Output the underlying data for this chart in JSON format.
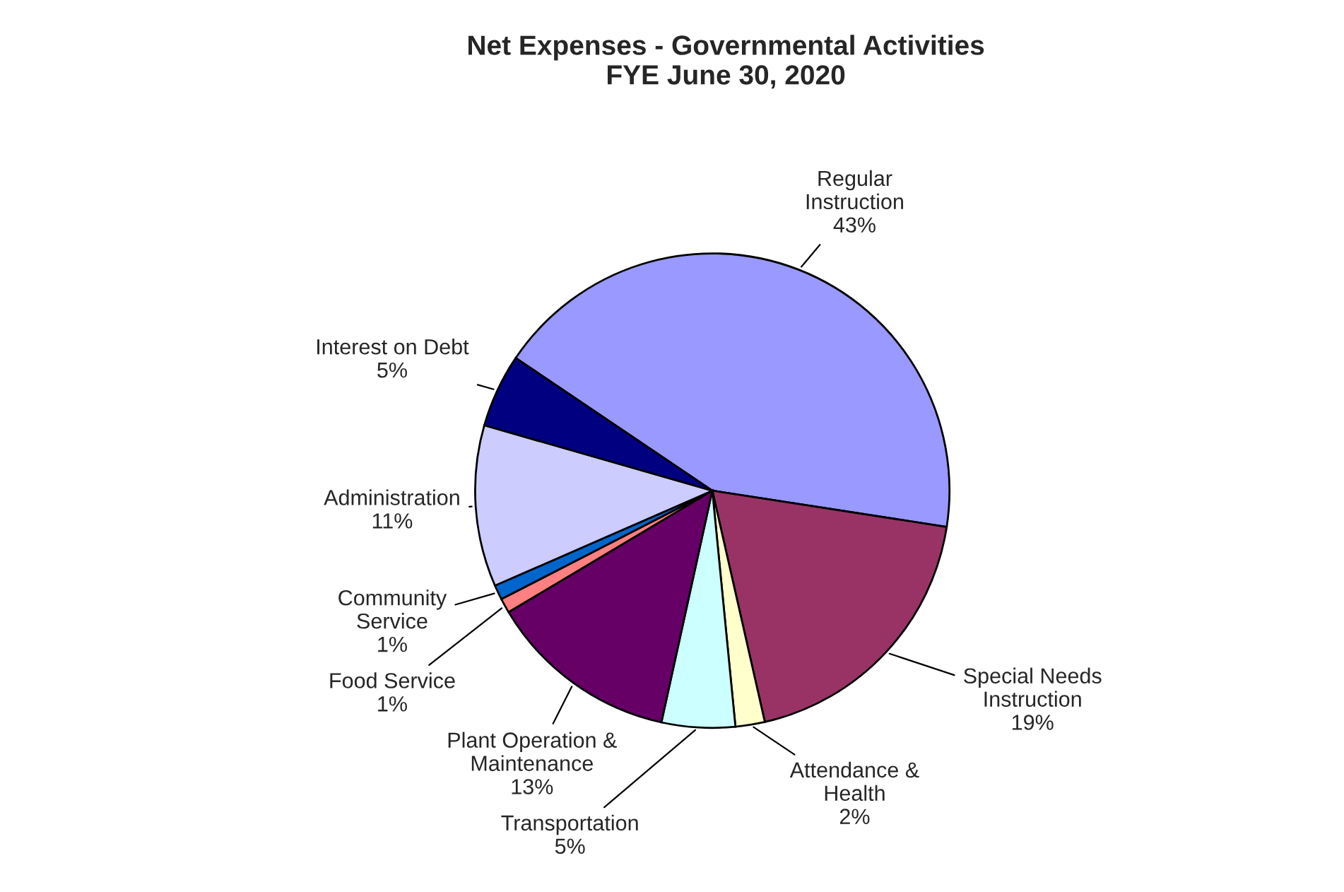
{
  "chart_data": {
    "type": "pie",
    "title": "Net Expenses - Governmental Activities\nFYE June 30, 2020",
    "categories": [
      "Regular\nInstruction",
      "Special Needs\nInstruction",
      "Attendance &\nHealth",
      "Transportation",
      "Plant Operation &\nMaintenance",
      "Food Service",
      "Community\nService",
      "Administration",
      "Interest on Debt"
    ],
    "values": [
      43,
      19,
      2,
      5,
      13,
      1,
      1,
      11,
      5
    ],
    "value_labels": [
      "43%",
      "19%",
      "2%",
      "5%",
      "13%",
      "1%",
      "1%",
      "11%",
      "5%"
    ],
    "colors": [
      "#9999ff",
      "#993366",
      "#ffffcc",
      "#ccffff",
      "#660066",
      "#ff8080",
      "#0066cc",
      "#ccccff",
      "#000080"
    ],
    "legend": false
  }
}
